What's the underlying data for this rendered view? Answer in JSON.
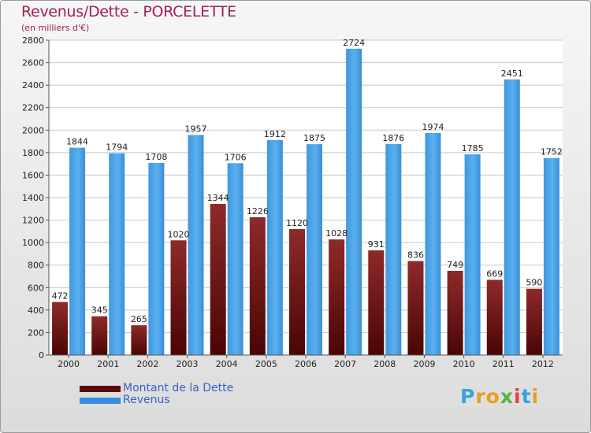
{
  "header": {
    "title": "Revenus/Dette - PORCELETTE",
    "subtitle": "(en milliers d'€)"
  },
  "chart_data": {
    "type": "bar",
    "title": "Revenus/Dette - PORCELETTE",
    "subtitle": "(en milliers d'€)",
    "xlabel": "",
    "ylabel": "",
    "ylim": [
      0,
      2800
    ],
    "yticks": [
      0,
      200,
      400,
      600,
      800,
      1000,
      1200,
      1400,
      1600,
      1800,
      2000,
      2200,
      2400,
      2600,
      2800
    ],
    "grid": true,
    "categories": [
      "2000",
      "2001",
      "2002",
      "2003",
      "2004",
      "2005",
      "2006",
      "2007",
      "2008",
      "2009",
      "2010",
      "2011",
      "2012"
    ],
    "series": [
      {
        "name": "Montant de la Dette",
        "color": "#7a1515",
        "values": [
          472,
          345,
          265,
          1020,
          1344,
          1226,
          1120,
          1028,
          931,
          836,
          749,
          669,
          590
        ],
        "labels": [
          "472",
          "345",
          "265",
          "1020",
          "1344",
          "1226",
          "1120",
          "1028",
          "931",
          "836",
          "749",
          "669",
          "590"
        ]
      },
      {
        "name": "Revenus",
        "color": "#4aa3e6",
        "values": [
          1844,
          1794,
          1708,
          1957,
          1706,
          1912,
          1875,
          2724,
          1876,
          1974,
          1785,
          2451,
          1752
        ],
        "labels": [
          "1844",
          "1794",
          "1708",
          "1957",
          "1706",
          "1912",
          "1875",
          "2724",
          "1876",
          "1974",
          "1785",
          "2451",
          "1752"
        ]
      }
    ]
  },
  "legend": {
    "items": [
      {
        "label": "Montant de la Dette",
        "color": "#5a0a0a"
      },
      {
        "label": "Revenus",
        "color": "#3b8fe0"
      }
    ]
  },
  "logo": {
    "letters": [
      "P",
      "r",
      "o",
      "x",
      "i",
      "t",
      "i"
    ],
    "colors": [
      "#3aa0e0",
      "#e8a020",
      "#e8a020",
      "#5ab040",
      "#e84040",
      "#3aa0e0",
      "#e8a020"
    ]
  }
}
